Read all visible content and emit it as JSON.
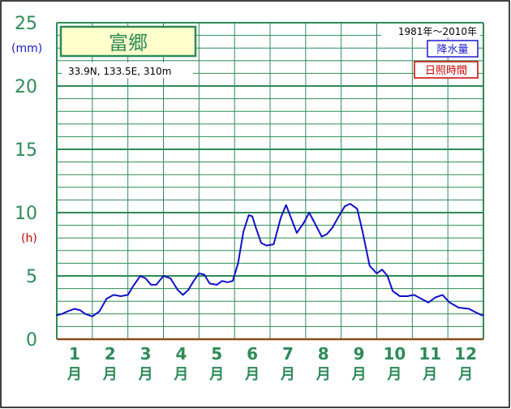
{
  "station": {
    "name": "富郷",
    "coords": "33.9N,  133.5E,  310m",
    "period": "1981年〜2010年"
  },
  "legend": {
    "precip_label": "降水量",
    "sunshine_label": "日照時間"
  },
  "units": {
    "mm": "(mm)",
    "h": "(h)"
  },
  "colors": {
    "grid": "#2e8b57",
    "line": "#1010cc",
    "precip": "#1a1acd",
    "sunshine": "#cc0000",
    "title_bg": "#ffffcc"
  },
  "chart_data": {
    "type": "line",
    "ylim": [
      0,
      25
    ],
    "yticks": [
      "0",
      "5",
      "10",
      "15",
      "20",
      "25"
    ],
    "categories": [
      "1",
      "2",
      "3",
      "4",
      "5",
      "6",
      "7",
      "8",
      "9",
      "10",
      "11",
      "12"
    ],
    "category_suffix": "月",
    "series": [
      {
        "x": [
          0.0,
          0.15,
          0.3,
          0.5,
          0.65,
          0.8,
          1.0,
          1.2,
          1.4,
          1.6,
          1.8,
          2.0,
          2.15,
          2.35,
          2.5,
          2.65,
          2.8,
          3.0,
          3.2,
          3.4,
          3.55,
          3.7,
          3.85,
          4.0,
          4.15,
          4.3,
          4.5,
          4.65,
          4.8,
          4.95,
          5.1,
          5.25,
          5.4,
          5.5,
          5.6,
          5.75,
          5.9,
          6.1,
          6.3,
          6.45,
          6.6,
          6.75,
          6.95,
          7.1,
          7.25,
          7.45,
          7.6,
          7.75,
          7.95,
          8.1,
          8.25,
          8.45,
          8.6,
          8.8,
          9.0,
          9.15,
          9.3,
          9.45,
          9.65,
          9.85,
          10.05,
          10.25,
          10.45,
          10.65,
          10.85,
          11.05,
          11.3,
          11.6,
          11.8,
          11.95,
          12.0
        ],
        "values": [
          1.9,
          2.0,
          2.2,
          2.4,
          2.3,
          2.0,
          1.8,
          2.2,
          3.2,
          3.5,
          3.4,
          3.5,
          4.2,
          5.0,
          4.8,
          4.3,
          4.3,
          5.0,
          4.8,
          3.9,
          3.5,
          3.9,
          4.6,
          5.2,
          5.1,
          4.4,
          4.3,
          4.6,
          4.5,
          4.6,
          6.0,
          8.5,
          9.8,
          9.7,
          8.8,
          7.6,
          7.4,
          7.5,
          9.6,
          10.6,
          9.5,
          8.4,
          9.2,
          10.0,
          9.2,
          8.1,
          8.3,
          8.8,
          9.8,
          10.5,
          10.7,
          10.3,
          8.5,
          5.8,
          5.2,
          5.5,
          5.0,
          3.8,
          3.4,
          3.4,
          3.5,
          3.2,
          2.9,
          3.3,
          3.5,
          2.9,
          2.5,
          2.4,
          2.1,
          1.9,
          1.9
        ]
      }
    ]
  }
}
